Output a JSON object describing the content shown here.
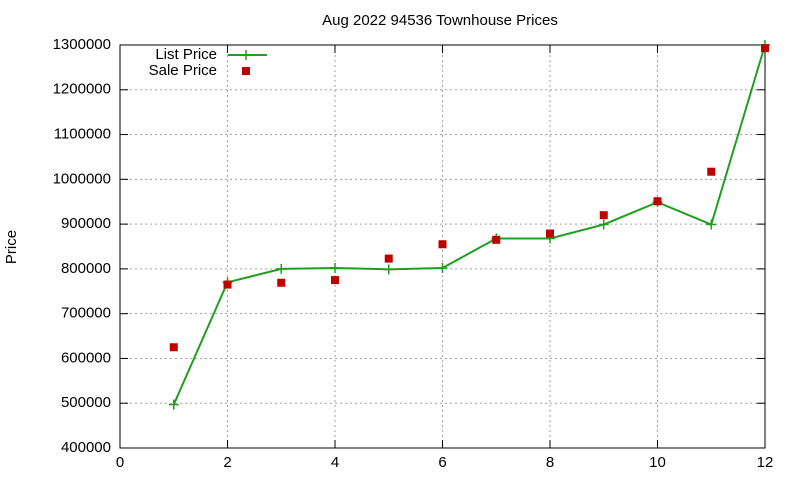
{
  "chart_data": {
    "type": "line",
    "title": "Aug 2022 94536 Townhouse Prices",
    "y_label": "Price",
    "x": [
      1,
      2,
      3,
      4,
      5,
      6,
      7,
      8,
      9,
      10,
      11,
      12
    ],
    "series": [
      {
        "name": "List Price",
        "color": "#1ea01e",
        "style": "linespoints",
        "values": [
          497000,
          770000,
          800000,
          802000,
          799000,
          802000,
          868000,
          868000,
          899000,
          949000,
          899000,
          1300000
        ]
      },
      {
        "name": "Sale Price",
        "color": "#c00000",
        "style": "points",
        "values": [
          625000,
          765000,
          769000,
          775000,
          823000,
          855000,
          865000,
          879000,
          920000,
          951000,
          1017000,
          1293000
        ]
      }
    ],
    "xlim": [
      0,
      12
    ],
    "xticks": [
      0,
      2,
      4,
      6,
      8,
      10,
      12
    ],
    "ylim": [
      400000,
      1300000
    ],
    "yticks": [
      400000,
      500000,
      600000,
      700000,
      800000,
      900000,
      1000000,
      1100000,
      1200000,
      1300000
    ],
    "grid": true,
    "legend": "top-left"
  }
}
